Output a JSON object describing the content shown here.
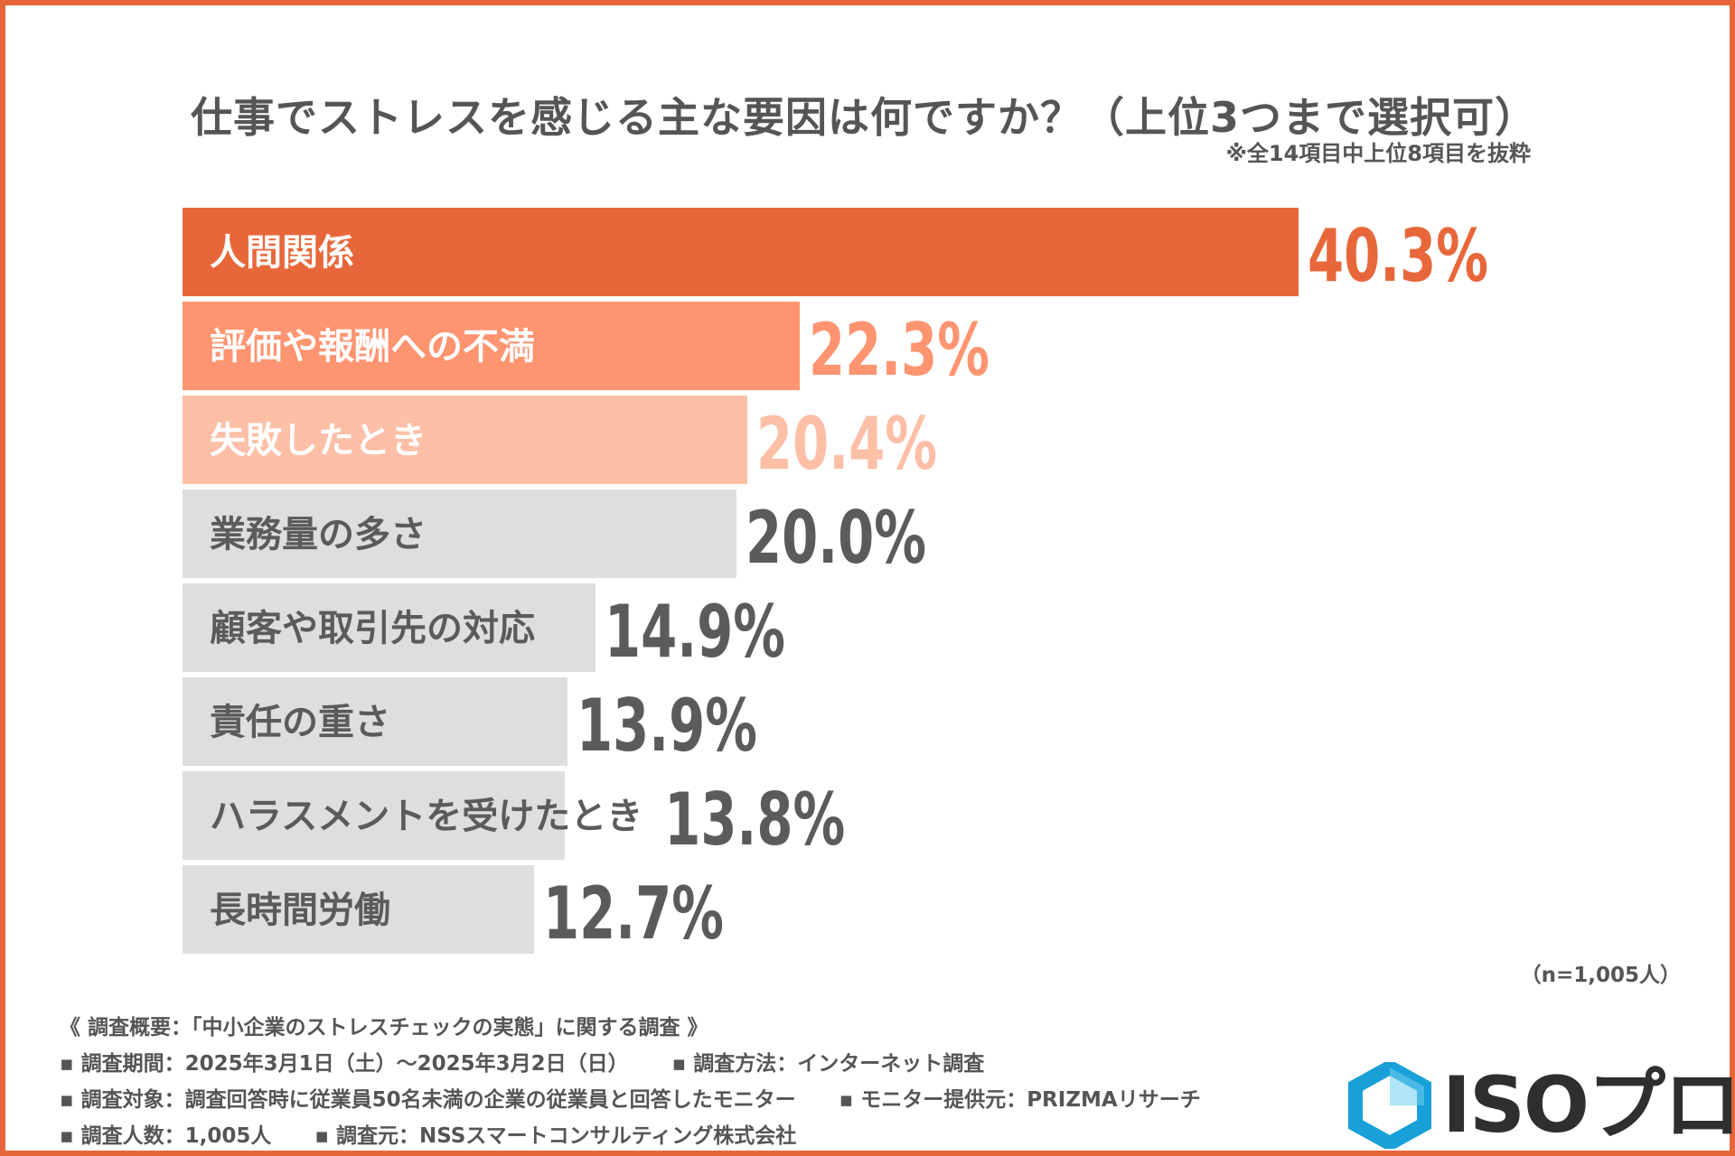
{
  "title": "仕事でストレスを感じる主な要因は何ですか？（上位3つまで選択可）",
  "subnote": "※全14項目中上位8項目を抜粋",
  "n_note": "（n=1,005人）",
  "colors": {
    "top1": "#e8673a",
    "top2": "#ff9470",
    "top3": "#fdbfa6",
    "other": "#dedede",
    "label_light": "#ffffff",
    "label_dark": "#5b5b5b",
    "value_other": "#5b5b5b",
    "border": "#e8673a"
  },
  "chart_data": {
    "type": "bar",
    "orientation": "horizontal",
    "title": "仕事でストレスを感じる主な要因は何ですか？（上位3つまで選択可）",
    "categories": [
      "人間関係",
      "評価や報酬への不満",
      "失敗したとき",
      "業務量の多さ",
      "顧客や取引先の対応",
      "責任の重さ",
      "ハラスメントを受けたとき",
      "長時間労働"
    ],
    "values": [
      40.3,
      22.3,
      20.4,
      20.0,
      14.9,
      13.9,
      13.8,
      12.7
    ],
    "value_labels": [
      "40.3%",
      "22.3%",
      "20.4%",
      "20.0%",
      "14.9%",
      "13.9%",
      "13.8%",
      "12.7%"
    ],
    "unit": "%",
    "xlim": [
      0,
      40.3
    ],
    "grid": false,
    "legend": "none"
  },
  "survey": {
    "heading": "《 調査概要：「中小企業のストレスチェックの実態」に関する調査 》",
    "period": "▪ 調査期間：2025年3月1日（土）～2025年3月2日（日）",
    "method": "▪ 調査方法：インターネット調査",
    "target": "▪ 調査対象：調査回答時に従業員50名未満の企業の従業員と回答したモニター",
    "provider": "▪ モニター提供元：PRIZMAリサーチ",
    "count": "▪ 調査人数：1,005人",
    "org": "▪ 調査元：NSSスマートコンサルティング株式会社"
  },
  "logo": {
    "text": "ISOプロ",
    "icon": "hexagon-icon",
    "colors": [
      "#1aa0d8",
      "#6fd0f0"
    ]
  }
}
